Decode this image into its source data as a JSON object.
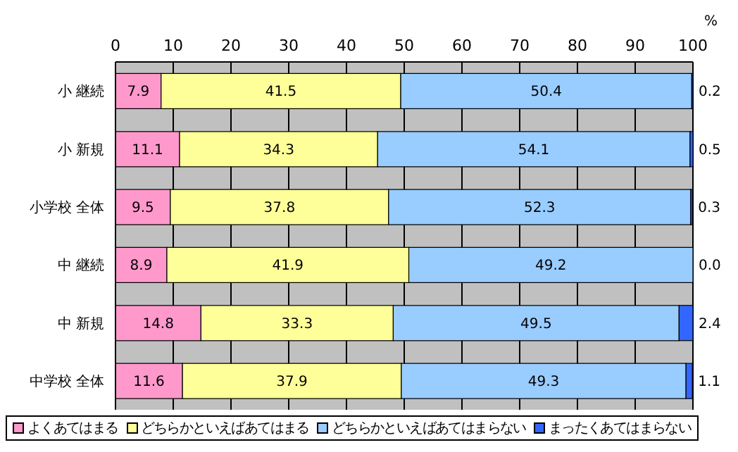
{
  "chart_data": {
    "type": "bar",
    "orientation": "horizontal",
    "stacked": true,
    "xlabel": "%",
    "categories": [
      "小 継続",
      "小 新規",
      "小学校 全体",
      "中 継続",
      "中 新規",
      "中学校 全体"
    ],
    "series": [
      {
        "name": "よくあてはまる",
        "color": "#ff99cc",
        "values": [
          7.9,
          11.1,
          9.5,
          8.9,
          14.8,
          11.6
        ],
        "value_labels": [
          "7.9",
          "11.1",
          "9.5",
          "8.9",
          "14.8",
          "11.6"
        ]
      },
      {
        "name": "どちらかといえばあてはまる",
        "color": "#ffff99",
        "values": [
          41.5,
          34.3,
          37.8,
          41.9,
          33.3,
          37.9
        ],
        "value_labels": [
          "41.5",
          "34.3",
          "37.8",
          "41.9",
          "33.3",
          "37.9"
        ]
      },
      {
        "name": "どちらかといえばあてはまらない",
        "color": "#99ccff",
        "values": [
          50.4,
          54.1,
          52.3,
          49.2,
          49.5,
          49.3
        ],
        "value_labels": [
          "50.4",
          "54.1",
          "52.3",
          "49.2",
          "49.5",
          "49.3"
        ]
      },
      {
        "name": "まったくあてはまらない",
        "color": "#3366ff",
        "values": [
          0.2,
          0.5,
          0.3,
          0.0,
          2.4,
          1.1
        ],
        "value_labels": [
          "0.2",
          "0.5",
          "0.3",
          "0.0",
          "2.4",
          "1.1"
        ]
      }
    ],
    "xlim": [
      0,
      100
    ],
    "xticks": [
      0,
      10,
      20,
      30,
      40,
      50,
      60,
      70,
      80,
      90,
      100
    ],
    "grid": "x",
    "legend": "bottom"
  }
}
